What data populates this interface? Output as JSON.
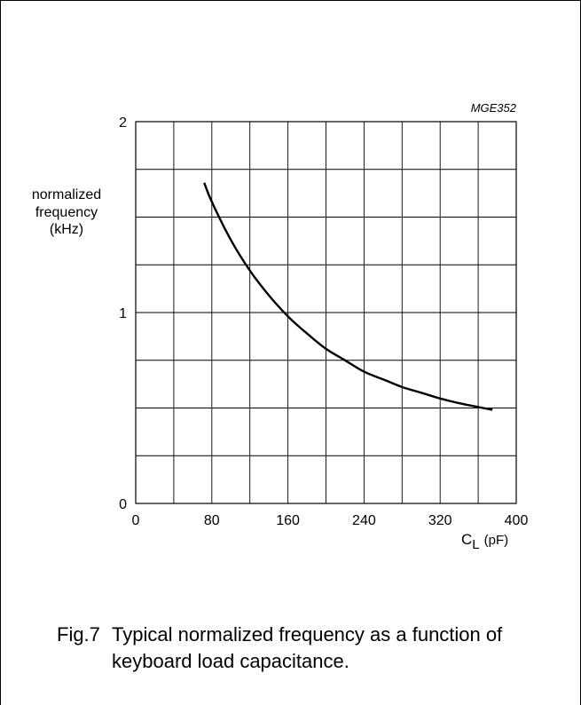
{
  "chart_data": {
    "type": "line",
    "code": "MGE352",
    "ylabel": [
      "normalized",
      "frequency",
      "(kHz)"
    ],
    "xlabel": {
      "main": "C",
      "sub": "L",
      "unit": "(pF)"
    },
    "xlim": [
      0,
      400
    ],
    "ylim": [
      0,
      2
    ],
    "x_ticks": [
      "0",
      "80",
      "160",
      "240",
      "320",
      "400"
    ],
    "y_ticks": [
      "0",
      "1",
      "2"
    ],
    "grid": true,
    "series": [
      {
        "points": [
          [
            72,
            1.68
          ],
          [
            80,
            1.58
          ],
          [
            100,
            1.38
          ],
          [
            120,
            1.22
          ],
          [
            140,
            1.09
          ],
          [
            160,
            0.98
          ],
          [
            180,
            0.89
          ],
          [
            200,
            0.81
          ],
          [
            220,
            0.75
          ],
          [
            240,
            0.69
          ],
          [
            260,
            0.65
          ],
          [
            280,
            0.61
          ],
          [
            300,
            0.58
          ],
          [
            320,
            0.55
          ],
          [
            340,
            0.525
          ],
          [
            360,
            0.505
          ],
          [
            375,
            0.49
          ]
        ]
      }
    ]
  },
  "caption": {
    "fig": "Fig.7",
    "line1": "Typical normalized frequency as a function of",
    "line2": "keyboard load capacitance."
  }
}
